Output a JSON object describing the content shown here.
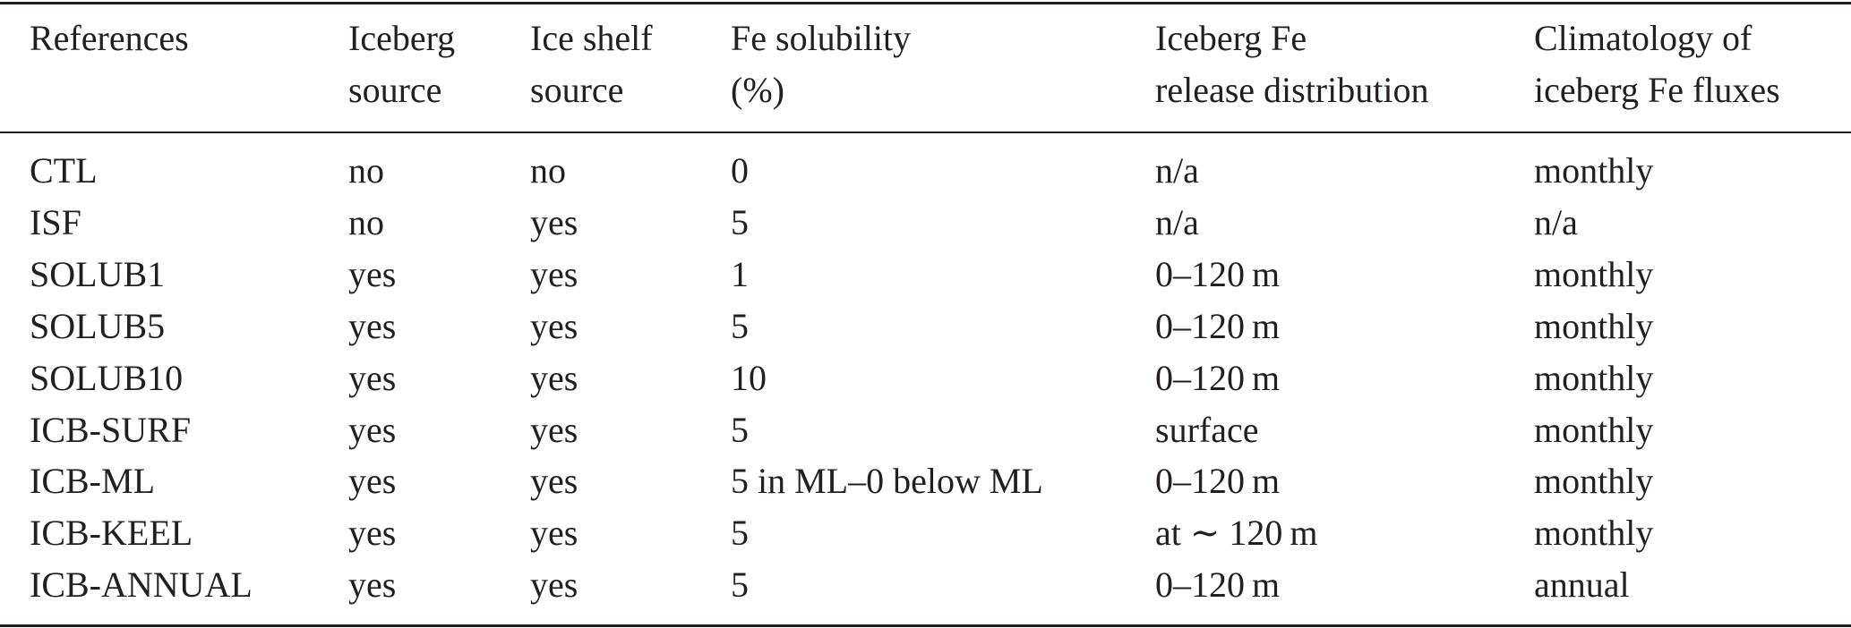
{
  "table": {
    "header": [
      [
        "References"
      ],
      [
        "Iceberg",
        "source"
      ],
      [
        "Ice shelf",
        "source"
      ],
      [
        "Fe solubility",
        "(%)"
      ],
      [
        "Iceberg Fe",
        "release distribution"
      ],
      [
        "Climatology of",
        "iceberg Fe fluxes"
      ]
    ],
    "rows": [
      [
        "CTL",
        "no",
        "no",
        "0",
        "n/a",
        "monthly"
      ],
      [
        "ISF",
        "no",
        "yes",
        "5",
        "n/a",
        "n/a"
      ],
      [
        "SOLUB1",
        "yes",
        "yes",
        "1",
        "0–120 m",
        "monthly"
      ],
      [
        "SOLUB5",
        "yes",
        "yes",
        "5",
        "0–120 m",
        "monthly"
      ],
      [
        "SOLUB10",
        "yes",
        "yes",
        "10",
        "0–120 m",
        "monthly"
      ],
      [
        "ICB-SURF",
        "yes",
        "yes",
        "5",
        "surface",
        "monthly"
      ],
      [
        "ICB-ML",
        "yes",
        "yes",
        "5 in ML–0 below ML",
        "0–120 m",
        "monthly"
      ],
      [
        "ICB-KEEL",
        "yes",
        "yes",
        "5",
        "at ∼ 120 m",
        "monthly"
      ],
      [
        "ICB-ANNUAL",
        "yes",
        "yes",
        "5",
        "0–120 m",
        "annual"
      ]
    ]
  }
}
